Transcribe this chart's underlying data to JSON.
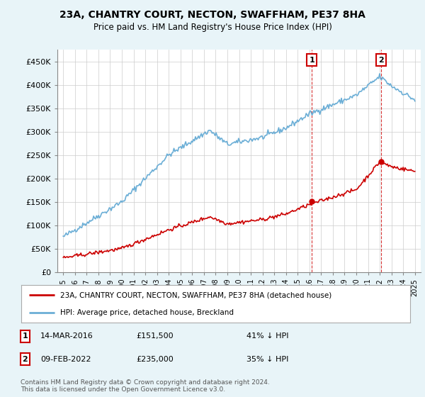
{
  "title": "23A, CHANTRY COURT, NECTON, SWAFFHAM, PE37 8HA",
  "subtitle": "Price paid vs. HM Land Registry's House Price Index (HPI)",
  "ylabel_ticks": [
    "£0",
    "£50K",
    "£100K",
    "£150K",
    "£200K",
    "£250K",
    "£300K",
    "£350K",
    "£400K",
    "£450K"
  ],
  "ytick_values": [
    0,
    50000,
    100000,
    150000,
    200000,
    250000,
    300000,
    350000,
    400000,
    450000
  ],
  "ylim": [
    0,
    475000
  ],
  "hpi_color": "#6baed6",
  "price_color": "#cc0000",
  "background_color": "#e8f4f8",
  "plot_bg_color": "#ffffff",
  "grid_color": "#cccccc",
  "transaction1_year": 2016.2,
  "transaction1_price": 151500,
  "transaction2_year": 2022.1,
  "transaction2_price": 235000,
  "legend_label_red": "23A, CHANTRY COURT, NECTON, SWAFFHAM, PE37 8HA (detached house)",
  "legend_label_blue": "HPI: Average price, detached house, Breckland",
  "annotation1_label": "1",
  "annotation1_date": "14-MAR-2016",
  "annotation1_price": "£151,500",
  "annotation1_hpi": "41% ↓ HPI",
  "annotation2_label": "2",
  "annotation2_date": "09-FEB-2022",
  "annotation2_price": "£235,000",
  "annotation2_hpi": "35% ↓ HPI",
  "footer": "Contains HM Land Registry data © Crown copyright and database right 2024.\nThis data is licensed under the Open Government Licence v3.0."
}
